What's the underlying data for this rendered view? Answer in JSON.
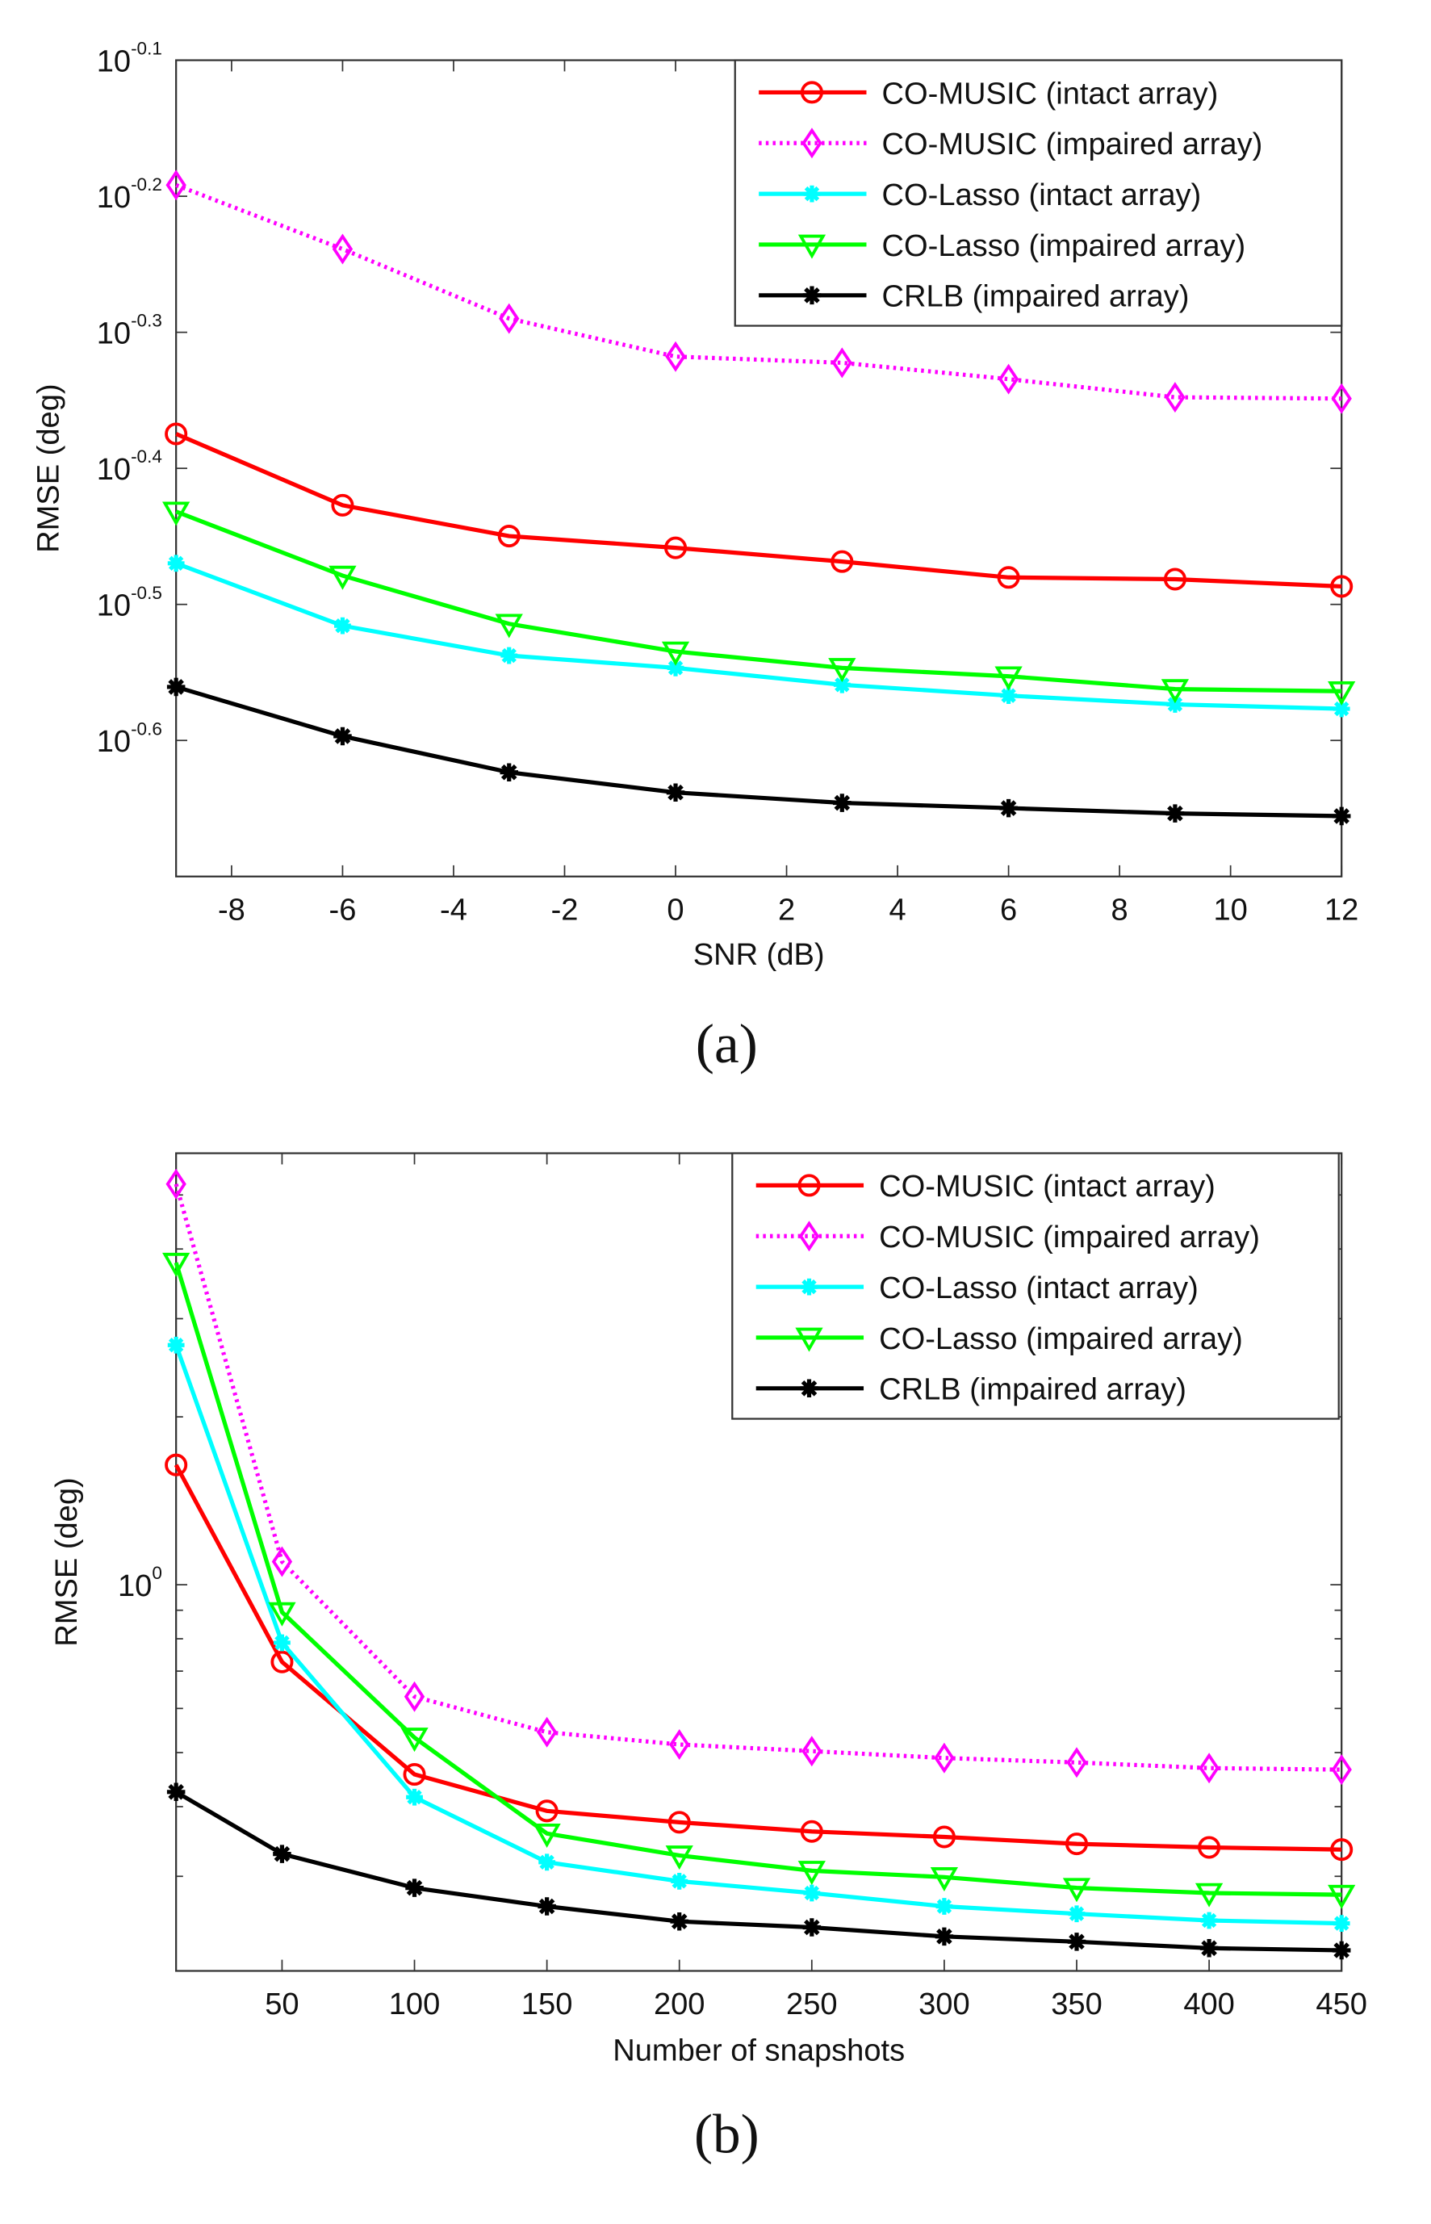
{
  "colors": {
    "co_music_intact": "#ff0000",
    "co_music_impaired": "#ff00ff",
    "co_lasso_intact": "#00ffff",
    "co_lasso_impaired": "#00ff00",
    "crlb_impaired": "#000000"
  },
  "chart_data": [
    {
      "type": "line",
      "caption": "(a)",
      "xlabel": "SNR (dB)",
      "ylabel": "RMSE (deg)",
      "yscale": "log",
      "xlim": [
        -9,
        12
      ],
      "ylim_log10": [
        -0.7,
        -0.1
      ],
      "xticks": [
        -8,
        -6,
        -4,
        -2,
        0,
        2,
        4,
        6,
        8,
        10,
        12
      ],
      "ytick_exponents": [
        "-0.1",
        "-0.2",
        "-0.3",
        "-0.4",
        "-0.5",
        "-0.6"
      ],
      "ytick_base": "10",
      "legend_position": "top-right",
      "x": [
        -9,
        -6,
        -3,
        0,
        3,
        6,
        9,
        12
      ],
      "series": [
        {
          "name": "CO-MUSIC (intact array)",
          "color_key": "co_music_intact",
          "marker": "circle",
          "style": "solid",
          "values": [
            0.422,
            0.374,
            0.355,
            0.348,
            0.34,
            0.331,
            0.33,
            0.326
          ]
        },
        {
          "name": "CO-MUSIC (impaired array)",
          "color_key": "co_music_impaired",
          "marker": "diamond",
          "style": "dotted",
          "values": [
            0.643,
            0.577,
            0.513,
            0.481,
            0.476,
            0.463,
            0.449,
            0.448
          ]
        },
        {
          "name": "CO-Lasso (intact array)",
          "color_key": "co_lasso_intact",
          "marker": "star",
          "style": "solid",
          "values": [
            0.339,
            0.305,
            0.29,
            0.284,
            0.276,
            0.271,
            0.267,
            0.265
          ]
        },
        {
          "name": "CO-Lasso (impaired array)",
          "color_key": "co_lasso_impaired",
          "marker": "triangle-down",
          "style": "solid",
          "values": [
            0.37,
            0.332,
            0.306,
            0.292,
            0.284,
            0.28,
            0.274,
            0.273
          ]
        },
        {
          "name": "CRLB (impaired array)",
          "color_key": "crlb_impaired",
          "marker": "asterisk",
          "style": "solid",
          "values": [
            0.275,
            0.253,
            0.238,
            0.23,
            0.226,
            0.224,
            0.222,
            0.221
          ]
        }
      ]
    },
    {
      "type": "line",
      "caption": "(b)",
      "xlabel": "Number of snapshots",
      "ylabel": "RMSE (deg)",
      "yscale": "log",
      "xlim": [
        10,
        450
      ],
      "ylim": [
        0.203,
        5.94
      ],
      "xticks": [
        50,
        100,
        150,
        200,
        250,
        300,
        350,
        400,
        450
      ],
      "ytick_exponents": [
        "0"
      ],
      "ytick_base": "10",
      "legend_position": "top-right",
      "x": [
        10,
        50,
        100,
        150,
        200,
        250,
        300,
        350,
        400,
        450
      ],
      "series": [
        {
          "name": "CO-MUSIC (intact array)",
          "color_key": "co_music_intact",
          "marker": "circle",
          "style": "solid",
          "values": [
            1.64,
            0.727,
            0.457,
            0.393,
            0.375,
            0.361,
            0.353,
            0.343,
            0.338,
            0.335
          ]
        },
        {
          "name": "CO-MUSIC (impaired array)",
          "color_key": "co_music_impaired",
          "marker": "diamond",
          "style": "dotted",
          "values": [
            5.23,
            1.1,
            0.63,
            0.544,
            0.517,
            0.503,
            0.489,
            0.48,
            0.469,
            0.466
          ]
        },
        {
          "name": "CO-Lasso (intact array)",
          "color_key": "co_lasso_intact",
          "marker": "star",
          "style": "solid",
          "values": [
            2.69,
            0.787,
            0.416,
            0.318,
            0.294,
            0.28,
            0.265,
            0.257,
            0.25,
            0.247
          ]
        },
        {
          "name": "CO-Lasso (impaired array)",
          "color_key": "co_lasso_impaired",
          "marker": "triangle-down",
          "style": "solid",
          "values": [
            3.78,
            0.893,
            0.532,
            0.358,
            0.327,
            0.307,
            0.299,
            0.286,
            0.28,
            0.278
          ]
        },
        {
          "name": "CRLB (impaired array)",
          "color_key": "crlb_impaired",
          "marker": "asterisk",
          "style": "solid",
          "values": [
            0.425,
            0.329,
            0.286,
            0.265,
            0.249,
            0.243,
            0.234,
            0.229,
            0.223,
            0.221
          ]
        }
      ]
    }
  ]
}
